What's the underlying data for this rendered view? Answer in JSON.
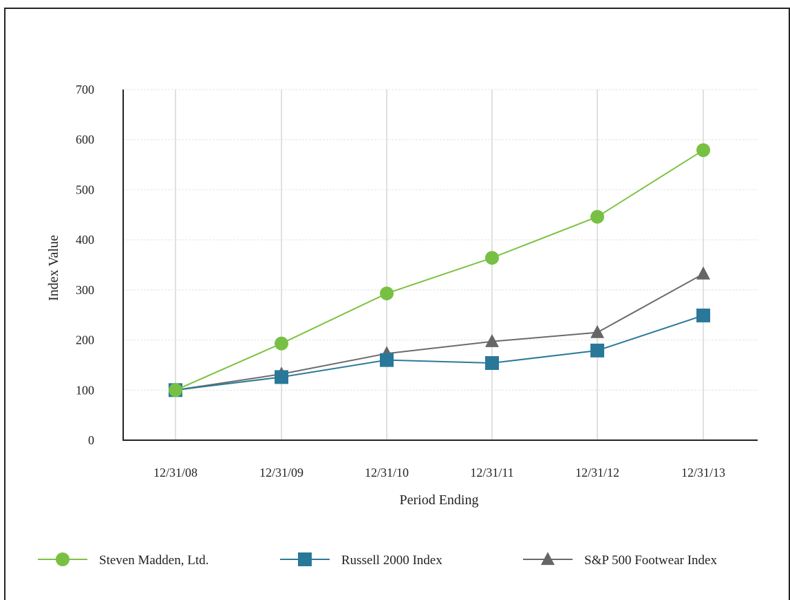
{
  "chart_data": {
    "type": "line",
    "title": "",
    "xlabel": "Period Ending",
    "ylabel": "Index Value",
    "categories": [
      "12/31/08",
      "12/31/09",
      "12/31/10",
      "12/31/11",
      "12/31/12",
      "12/31/13"
    ],
    "ylim": [
      0,
      700
    ],
    "yticks": [
      0,
      100,
      200,
      300,
      400,
      500,
      600,
      700
    ],
    "grid": true,
    "legend_position": "bottom",
    "series": [
      {
        "name": "Steven Madden, Ltd.",
        "marker": "circle",
        "color": "#7dc242",
        "markerColor": "#78c043",
        "values": [
          100,
          193,
          293,
          364,
          446,
          579
        ]
      },
      {
        "name": "Russell 2000 Index",
        "marker": "square",
        "color": "#2b7a99",
        "markerColor": "#2a7899",
        "values": [
          100,
          126,
          160,
          154,
          179,
          249
        ]
      },
      {
        "name": "S&P 500 Footwear Index",
        "marker": "triangle",
        "color": "#6b6b6b",
        "markerColor": "#666666",
        "values": [
          100,
          132,
          173,
          197,
          215,
          332
        ]
      }
    ]
  }
}
